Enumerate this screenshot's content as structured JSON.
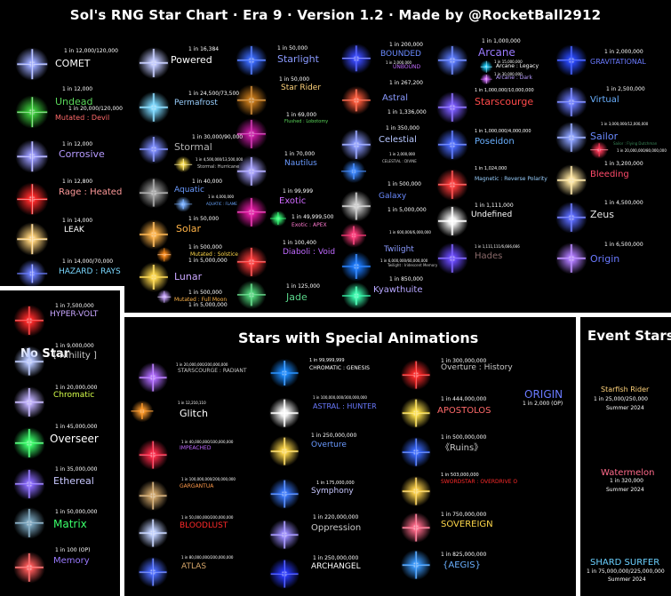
{
  "title": "Sol's RNG Star Chart · Era 9 · Version 1.2 · Made by @RocketBall2912",
  "sections": [
    {
      "label": "Stars with Special Animations",
      "color": "#ffffff"
    },
    {
      "label": "Event Stars",
      "color": "#ffffff"
    },
    {
      "label": "No Star",
      "color": "#ffffff"
    }
  ],
  "stars": [
    {
      "color": "#9aa8ff"
    },
    {
      "color": "#3dcc3d"
    },
    {
      "color": "#9a9aff"
    },
    {
      "color": "#ff2a2a"
    },
    {
      "color": "#ffd27a"
    },
    {
      "color": "#6a7dff"
    },
    {
      "color": "#c0c8ff"
    },
    {
      "color": "#7ad8ff"
    },
    {
      "color": "#7a8aff"
    },
    {
      "color": "#ffe14a"
    },
    {
      "color": "#a0a0a0"
    },
    {
      "color": "#7ab0ff"
    },
    {
      "color": "#ffb347"
    },
    {
      "color": "#ff8c1a"
    },
    {
      "color": "#ffd84a"
    },
    {
      "color": "#c9a6ff"
    },
    {
      "color": "#3a6aff"
    },
    {
      "color": "#c87a1a"
    },
    {
      "color": "#c91aa6"
    },
    {
      "color": "#a6a0ff"
    },
    {
      "color": "#e61aa6"
    },
    {
      "color": "#3aff7a"
    },
    {
      "color": "#ff3a3a"
    },
    {
      "color": "#4fd67a"
    },
    {
      "color": "#3a4aff"
    },
    {
      "color": "#ff5a3a"
    },
    {
      "color": "#8a9aff"
    },
    {
      "color": "#3a86ff"
    },
    {
      "color": "#c8c8c8"
    },
    {
      "color": "#ff3a7a"
    },
    {
      "color": "#1a7aff"
    },
    {
      "color": "#3affb0"
    },
    {
      "color": "#5a7aff"
    },
    {
      "color": "#1ad0ff"
    },
    {
      "color": "#d06aff"
    },
    {
      "color": "#7a5aff"
    },
    {
      "color": "#4a6aff"
    },
    {
      "color": "#ff3a3a"
    },
    {
      "color": "#ffffff"
    },
    {
      "color": "#6a4aff"
    },
    {
      "color": "#2a4aff"
    },
    {
      "color": "#6a7aff"
    },
    {
      "color": "#8aa0ff"
    },
    {
      "color": "#ff3a5a"
    },
    {
      "color": "#ffe6a0"
    },
    {
      "color": "#5a6aff"
    },
    {
      "color": "#b07aff"
    },
    {
      "color": "#ff2a2a"
    },
    {
      "color": "#b6c6ff"
    },
    {
      "color": "#c0b0ff"
    },
    {
      "color": "#3aff6a"
    },
    {
      "color": "#8a6aff"
    },
    {
      "color": "#7aa6c0"
    },
    {
      "color": "#ff5a5a"
    },
    {
      "color": "#b06aff"
    },
    {
      "color": "#ff9a2a"
    },
    {
      "color": "#ff2a4a"
    },
    {
      "color": "#d0a66a"
    },
    {
      "color": "#c0d0ff"
    },
    {
      "color": "#4a6aff"
    },
    {
      "color": "#1a8aff"
    },
    {
      "color": "#ffffff"
    },
    {
      "color": "#ffd84a"
    },
    {
      "color": "#3a7aff"
    },
    {
      "color": "#9a8aff"
    },
    {
      "color": "#2a3aff"
    },
    {
      "color": "#ff2a2a"
    },
    {
      "color": "#ffe14a"
    },
    {
      "color": "#3a6aff"
    },
    {
      "color": "#ffd24a"
    },
    {
      "color": "#ff6a8a"
    },
    {
      "color": "#3a9aff"
    }
  ],
  "labels": [
    {
      "text": "1 in 12,000/120,000",
      "color": "#ffffff"
    },
    {
      "text": "COMET",
      "color": "#ffffff"
    },
    {
      "text": "1 in 12,000",
      "color": "#ffffff"
    },
    {
      "text": "Undead",
      "color": "#5ad65a"
    },
    {
      "text": "1 in 20,000/120,000",
      "color": "#ffffff"
    },
    {
      "text": "Mutated : Devil",
      "color": "#ff6a6a"
    },
    {
      "text": "1 in 12,000",
      "color": "#ffffff"
    },
    {
      "text": "Corrosive",
      "color": "#b69aff"
    },
    {
      "text": "1 in 12,800",
      "color": "#ffffff"
    },
    {
      "text": "Rage : Heated",
      "color": "#ff9a9a"
    },
    {
      "text": "1 in 14,000",
      "color": "#ffffff"
    },
    {
      "text": "LEAK",
      "color": "#ffffff"
    },
    {
      "text": "1 in 14,000/70,000",
      "color": "#ffffff"
    },
    {
      "text": "HAZARD : RAYS",
      "color": "#7ad8ff"
    },
    {
      "text": "1 in 16,384",
      "color": "#ffffff"
    },
    {
      "text": "Powered",
      "color": "#ffffff"
    },
    {
      "text": "1 in 24,500/73,500",
      "color": "#ffffff"
    },
    {
      "text": "Permafrost",
      "color": "#9ad0ff"
    },
    {
      "text": "1 in 30,000/90,000",
      "color": "#ffffff"
    },
    {
      "text": "Stormal",
      "color": "#b0b0b0"
    },
    {
      "text": "1 in 4,500,000/13,500,000",
      "color": "#ffffff"
    },
    {
      "text": "Stormal: Hurricane",
      "color": "#c8c8c8"
    },
    {
      "text": "1 in 40,000",
      "color": "#ffffff"
    },
    {
      "text": "Aquatic",
      "color": "#6a9aff"
    },
    {
      "text": "1 in 4,000,000",
      "color": "#ffffff"
    },
    {
      "text": "AQUATIC : FLAME",
      "color": "#6aa6ff"
    },
    {
      "text": "1 in 50,000",
      "color": "#ffffff"
    },
    {
      "text": "Solar",
      "color": "#ffb347"
    },
    {
      "text": "1 in 500,000",
      "color": "#ffffff"
    },
    {
      "text": "Mutated : Solstice",
      "color": "#ffd84a"
    },
    {
      "text": "1 in 5,000,000",
      "color": "#ffffff"
    },
    {
      "text": "Lunar",
      "color": "#c9a6ff"
    },
    {
      "text": "1 in 500,000",
      "color": "#ffffff"
    },
    {
      "text": "Mutated : Full Moon",
      "color": "#ffb347"
    },
    {
      "text": "1 in 5,000,000",
      "color": "#ffffff"
    },
    {
      "text": "1 in 50,000",
      "color": "#ffffff"
    },
    {
      "text": "Starlight",
      "color": "#8a9aff"
    },
    {
      "text": "1 in 50,000",
      "color": "#ffffff"
    },
    {
      "text": "Star Rider",
      "color": "#ffd27a"
    },
    {
      "text": "1 in 69,000",
      "color": "#ffffff"
    },
    {
      "text": "Flushed : Lobotomy",
      "color": "#5ad65a"
    },
    {
      "text": "1 in 70,000",
      "color": "#ffffff"
    },
    {
      "text": "Nautilus",
      "color": "#6a9aff"
    },
    {
      "text": "1 in 99,999",
      "color": "#ffffff"
    },
    {
      "text": "Exotic",
      "color": "#d06aff"
    },
    {
      "text": "1 in 49,999,500",
      "color": "#ffffff"
    },
    {
      "text": "Exotic : APEX",
      "color": "#ff7ad0"
    },
    {
      "text": "1 in 100,400",
      "color": "#ffffff"
    },
    {
      "text": "Diaboli : Void",
      "color": "#c06aff"
    },
    {
      "text": "1 in 125,000",
      "color": "#ffffff"
    },
    {
      "text": "Jade",
      "color": "#5ad68a"
    },
    {
      "text": "1 in 200,000",
      "color": "#ffffff"
    },
    {
      "text": "BOUNDED",
      "color": "#6a8aff"
    },
    {
      "text": "1 in 2,000,000",
      "color": "#ffffff"
    },
    {
      "text": "UNBOUND",
      "color": "#c06aff"
    },
    {
      "text": "1 in 267,200",
      "color": "#ffffff"
    },
    {
      "text": "Astral",
      "color": "#8a9aff"
    },
    {
      "text": "1 in 1,336,000",
      "color": "#ffffff"
    },
    {
      "text": "1 in 350,000",
      "color": "#ffffff"
    },
    {
      "text": "Celestial",
      "color": "#b6c6ff"
    },
    {
      "text": "1 in 2,000,000",
      "color": "#ffffff"
    },
    {
      "text": "CELESTIAL : DIVINE",
      "color": "#c8c8c8"
    },
    {
      "text": "1 in 500,000",
      "color": "#ffffff"
    },
    {
      "text": "Galaxy",
      "color": "#6a8aff"
    },
    {
      "text": "1 in 5,000,000",
      "color": "#ffffff"
    },
    {
      "text": "1 in 600,000/6,000,000",
      "color": "#ffffff"
    },
    {
      "text": "Twilight",
      "color": "#8a9aff"
    },
    {
      "text": "1 in 6,000,000/60,000,000",
      "color": "#ffffff"
    },
    {
      "text": "Twilight : Iridescent Memory",
      "color": "#c8c8c8"
    },
    {
      "text": "1 in 850,000",
      "color": "#ffffff"
    },
    {
      "text": "Kyawthuite",
      "color": "#b6a6ff"
    },
    {
      "text": "1 in 1,000,000",
      "color": "#ffffff"
    },
    {
      "text": "Arcane",
      "color": "#9a7aff"
    },
    {
      "text": "1 in 15,000,000",
      "color": "#ffffff"
    },
    {
      "text": "Arcane : Legacy",
      "color": "#ffffff"
    },
    {
      "text": "1 in 30,000,000",
      "color": "#ffffff"
    },
    {
      "text": "Arcane : Dark",
      "color": "#b69aff"
    },
    {
      "text": "1 in 1,000,000/10,000,000",
      "color": "#ffffff"
    },
    {
      "text": "Starscourge",
      "color": "#ff4a4a"
    },
    {
      "text": "1 in 1,000,000/4,000,000",
      "color": "#ffffff"
    },
    {
      "text": "Poseidon",
      "color": "#6ab0ff"
    },
    {
      "text": "1 in 1,024,000",
      "color": "#ffffff"
    },
    {
      "text": "Magnetic : Reverse Polarity",
      "color": "#9ad0ff"
    },
    {
      "text": "1 in 1,111,000",
      "color": "#ffffff"
    },
    {
      "text": "Undefined",
      "color": "#ffffff"
    },
    {
      "text": "1 in 1,111,111/6,666,666",
      "color": "#ffffff"
    },
    {
      "text": "Hades",
      "color": "#8a6a6a"
    },
    {
      "text": "1 in 2,000,000",
      "color": "#ffffff"
    },
    {
      "text": "GRAVITATIONAL",
      "color": "#6a7aff"
    },
    {
      "text": "1 in 2,500,000",
      "color": "#ffffff"
    },
    {
      "text": "Virtual",
      "color": "#6ab0ff"
    },
    {
      "text": "1 in 3,000,000/12,000,000",
      "color": "#ffffff"
    },
    {
      "text": "Sailor",
      "color": "#6a8aff"
    },
    {
      "text": "Sailor : Flying Dutchman",
      "color": "#3a8a5a"
    },
    {
      "text": "1 in 20,000,000/80,000,000",
      "color": "#ffffff"
    },
    {
      "text": "1 in 3,200,000",
      "color": "#ffffff"
    },
    {
      "text": "Bleeding",
      "color": "#ff4a6a"
    },
    {
      "text": "1 in 4,500,000",
      "color": "#ffffff"
    },
    {
      "text": "Zeus",
      "color": "#e6e6e6"
    },
    {
      "text": "1 in 6,500,000",
      "color": "#ffffff"
    },
    {
      "text": "Origin",
      "color": "#6a7aff"
    },
    {
      "text": "1 in 7,500,000",
      "color": "#ffffff"
    },
    {
      "text": "HYPER-VOLT",
      "color": "#c8a6ff"
    },
    {
      "text": "1 in 9,000,000",
      "color": "#ffffff"
    },
    {
      "text": "[ Nihility ]",
      "color": "#c8c8c8"
    },
    {
      "text": "1 in 20,000,000",
      "color": "#ffffff"
    },
    {
      "text": "Chromatic",
      "color": "#d6ff4a"
    },
    {
      "text": "1 in 45,000,000",
      "color": "#ffffff"
    },
    {
      "text": "Overseer",
      "color": "#ffffff"
    },
    {
      "text": "1 in 35,000,000",
      "color": "#ffffff"
    },
    {
      "text": "Ethereal",
      "color": "#c8c8ff"
    },
    {
      "text": "1 in 50,000,000",
      "color": "#ffffff"
    },
    {
      "text": "Matrix",
      "color": "#3aff6a"
    },
    {
      "text": "1 in 100 (OP)",
      "color": "#ffffff"
    },
    {
      "text": "Memory",
      "color": "#9a7aff"
    },
    {
      "text": "1 in 20,000,000/200,000,000",
      "color": "#ffffff"
    },
    {
      "text": "STARSCOURGE : RADIANT",
      "color": "#c8c8c8"
    },
    {
      "text": "1 in 12,210,110",
      "color": "#ffffff"
    },
    {
      "text": "Glitch",
      "color": "#ffffff"
    },
    {
      "text": "1 in 40,000,000/100,000,000",
      "color": "#ffffff"
    },
    {
      "text": "IMPEACHED",
      "color": "#c06aff"
    },
    {
      "text": "1 in 100,000,000/200,000,000",
      "color": "#ffffff"
    },
    {
      "text": "GARGANTUA",
      "color": "#ff9a4a"
    },
    {
      "text": "1 in 50,000,000/200,000,000",
      "color": "#ffffff"
    },
    {
      "text": "BLOODLUST",
      "color": "#ff2a2a"
    },
    {
      "text": "1 in 80,000,000/200,000,000",
      "color": "#ffffff"
    },
    {
      "text": "ATLAS",
      "color": "#d6a66a"
    },
    {
      "text": "1 in 99,999,999",
      "color": "#ffffff"
    },
    {
      "text": "CHROMATIC : GENESIS",
      "color": "#ffffff"
    },
    {
      "text": "1 in 100,000,000/300,000,000",
      "color": "#ffffff"
    },
    {
      "text": "ASTRAL : HUNTER",
      "color": "#6a7aff"
    },
    {
      "text": "1 in 250,000,000",
      "color": "#ffffff"
    },
    {
      "text": "Overture",
      "color": "#6a9aff"
    },
    {
      "text": "1 in 175,000,000",
      "color": "#ffffff"
    },
    {
      "text": "Symphony",
      "color": "#c8c8ff"
    },
    {
      "text": "1 in 220,000,000",
      "color": "#ffffff"
    },
    {
      "text": "Oppression",
      "color": "#c8c8c8"
    },
    {
      "text": "1 in 250,000,000",
      "color": "#ffffff"
    },
    {
      "text": "ARCHANGEL",
      "color": "#ffffff"
    },
    {
      "text": "1 in 300,000,000",
      "color": "#ffffff"
    },
    {
      "text": "Overture : History",
      "color": "#c8c8c8"
    },
    {
      "text": "1 in 444,000,000",
      "color": "#ffffff"
    },
    {
      "text": "APOSTOLOS",
      "color": "#ff6a6a"
    },
    {
      "text": "1 in 500,000,000",
      "color": "#ffffff"
    },
    {
      "text": "《Ruins》",
      "color": "#c8c8c8"
    },
    {
      "text": "1 in 503,000,000",
      "color": "#ffffff"
    },
    {
      "text": "SWORDSTAR : OVERDRIVE O",
      "color": "#ff2a2a"
    },
    {
      "text": "1 in 750,000,000",
      "color": "#ffffff"
    },
    {
      "text": "SOVEREIGN",
      "color": "#ffd84a"
    },
    {
      "text": "1 in 825,000,000",
      "color": "#ffffff"
    },
    {
      "text": "{AEGIS}",
      "color": "#6ab0ff"
    },
    {
      "text": "1 in 2,000 (OP)",
      "color": "#ffffff"
    },
    {
      "text": "ORIGIN",
      "color": "#6a7aff"
    },
    {
      "text": "Starfish Rider",
      "color": "#ffd27a"
    },
    {
      "text": "1 in 25,000/250,000",
      "color": "#ffffff"
    },
    {
      "text": "Summer 2024",
      "color": "#ffffff"
    },
    {
      "text": "Watermelon",
      "color": "#ff6a8a"
    },
    {
      "text": "1 in 320,000",
      "color": "#ffffff"
    },
    {
      "text": "Summer 2024",
      "color": "#ffffff"
    },
    {
      "text": "SHARD SURFER",
      "color": "#6ad0ff"
    },
    {
      "text": "1 in 75,000,000/225,000,000",
      "color": "#ffffff"
    },
    {
      "text": "Summer 2024",
      "color": "#ffffff"
    }
  ]
}
